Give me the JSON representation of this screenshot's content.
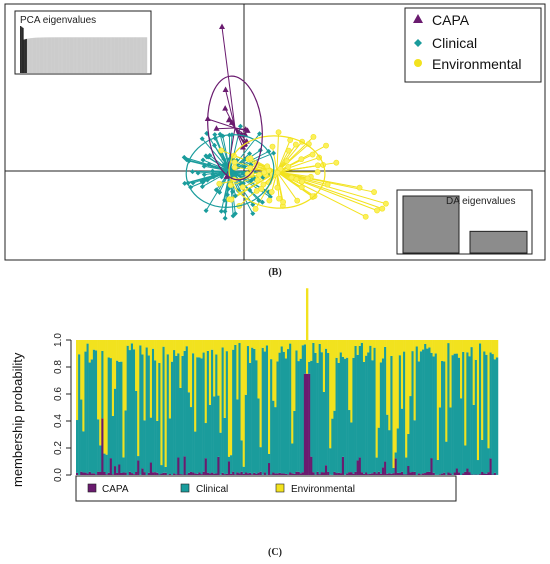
{
  "captions": {
    "b": "(B)",
    "c": "(C)"
  },
  "colors": {
    "capa": "#6a1b6f",
    "capa_light": "#8e4b96",
    "clinical": "#1a9c9c",
    "environmental": "#f2e21e",
    "env_light": "#fbf05a",
    "bar_gray": "#8c8c8c",
    "eig_dark": "#2b2b2b",
    "eig_light": "#cccccc"
  },
  "chart_data": [
    {
      "type": "scatter",
      "panel": "B",
      "description_free": true,
      "legend": {
        "placement": "top-right",
        "entries": [
          "CAPA",
          "Clinical",
          "Environmental"
        ],
        "markers": [
          "triangle",
          "diamond",
          "circle"
        ]
      },
      "insets": {
        "pca": {
          "label": "PCA eigenvalues",
          "placement": "top-left",
          "values": [
            1.0,
            0.86,
            0.78,
            0.74,
            0.72,
            0.71,
            0.705,
            0.7
          ],
          "retained": 2
        },
        "da": {
          "label": "DA eigenvalues",
          "placement": "bottom-right",
          "values": [
            1.0,
            0.38
          ]
        }
      },
      "x": [],
      "y": [],
      "grid": false,
      "axes_cross_at_origin": true
    },
    {
      "type": "bar",
      "panel": "C",
      "stacked": true,
      "ylabel": "membership probability",
      "ylim": [
        0,
        1.0
      ],
      "yticks": [
        "0.0",
        "0.2",
        "0.4",
        "0.6",
        "0.8",
        "1.0"
      ],
      "series": [
        {
          "name": "CAPA"
        },
        {
          "name": "Clinical"
        },
        {
          "name": "Environmental"
        }
      ],
      "n_samples": 200,
      "legend": {
        "placement": "bottom",
        "entries": [
          "CAPA",
          "Clinical",
          "Environmental"
        ]
      }
    }
  ]
}
